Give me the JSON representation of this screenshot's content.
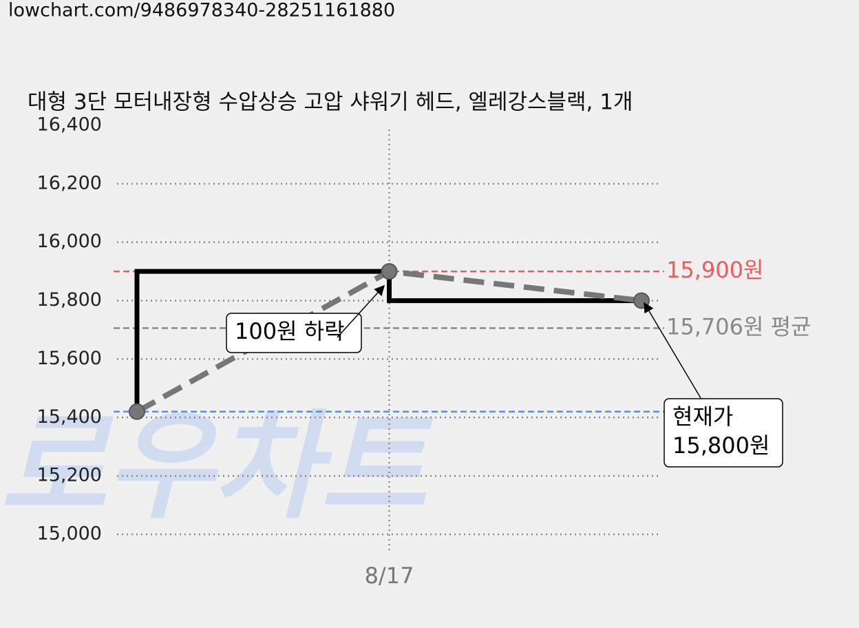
{
  "url": "lowchart.com/9486978340-28251161880",
  "chart_data": {
    "type": "line",
    "title": "대형 3단 모터내장형 수압상승 고압 샤워기 헤드, 엘레강스블랙, 1개",
    "watermark": "로우차트",
    "categories": [
      null,
      "8/17",
      null
    ],
    "series": [
      {
        "color": "#777777",
        "step_color": "#000000",
        "values": [
          15420,
          15900,
          15800
        ]
      }
    ],
    "ylim": [
      15000,
      16400
    ],
    "yticks": [
      {
        "value": 15000,
        "label": "15,000"
      },
      {
        "value": 15200,
        "label": "15,200"
      },
      {
        "value": 15400,
        "label": "15,400"
      },
      {
        "value": 15600,
        "label": "15,600"
      },
      {
        "value": 15800,
        "label": "15,800"
      },
      {
        "value": 16000,
        "label": "16,000"
      },
      {
        "value": 16200,
        "label": "16,200"
      },
      {
        "value": 16400,
        "label": "16,400"
      }
    ],
    "grid": true,
    "reference_lines": [
      {
        "value": 15900,
        "label": "15,900원",
        "color": "#f05a5a"
      },
      {
        "value": 15706,
        "label": "15,706원 평균",
        "color": "#888888"
      },
      {
        "value": 15420,
        "color": "#5b8def"
      }
    ],
    "annotations": [
      {
        "lines": [
          "100원 하락"
        ]
      },
      {
        "lines": [
          "현재가",
          "15,800원"
        ]
      }
    ]
  }
}
